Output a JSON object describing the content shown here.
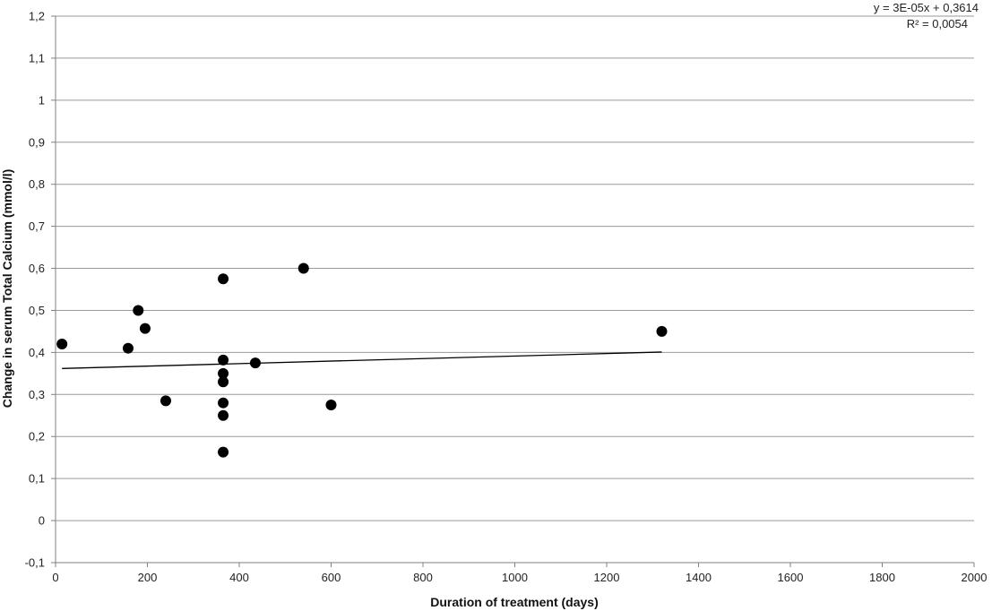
{
  "chart_data": {
    "type": "scatter",
    "title": "",
    "xlabel": "Duration of treatment (days)",
    "ylabel": "Change in serum Total Calcium (mmol/l)",
    "xlim": [
      0,
      2000
    ],
    "ylim": [
      -0.1,
      1.2
    ],
    "x_ticks": [
      0,
      200,
      400,
      600,
      800,
      1000,
      1200,
      1400,
      1600,
      1800,
      2000
    ],
    "x_tick_labels": [
      "0",
      "200",
      "400",
      "600",
      "800",
      "1000",
      "1200",
      "1400",
      "1600",
      "1800",
      "2000"
    ],
    "y_ticks": [
      -0.1,
      0,
      0.1,
      0.2,
      0.3,
      0.4,
      0.5,
      0.6,
      0.7,
      0.8,
      0.9,
      1.0,
      1.1,
      1.2
    ],
    "y_tick_labels": [
      "-0,1",
      "0",
      "0,1",
      "0,2",
      "0,3",
      "0,4",
      "0,5",
      "0,6",
      "0,7",
      "0,8",
      "0,9",
      "1",
      "1,1",
      "1,2"
    ],
    "grid": "horizontal",
    "marker_color": "#000000",
    "grid_color": "#9a9a9a",
    "points": [
      {
        "x": 14,
        "y": 0.42
      },
      {
        "x": 158,
        "y": 0.41
      },
      {
        "x": 180,
        "y": 0.5
      },
      {
        "x": 195,
        "y": 0.457
      },
      {
        "x": 240,
        "y": 0.285
      },
      {
        "x": 365,
        "y": 0.575
      },
      {
        "x": 365,
        "y": 0.382
      },
      {
        "x": 365,
        "y": 0.35
      },
      {
        "x": 365,
        "y": 0.33
      },
      {
        "x": 365,
        "y": 0.28
      },
      {
        "x": 365,
        "y": 0.25
      },
      {
        "x": 365,
        "y": 0.163
      },
      {
        "x": 435,
        "y": 0.375
      },
      {
        "x": 540,
        "y": 0.6
      },
      {
        "x": 600,
        "y": 0.275
      },
      {
        "x": 1320,
        "y": 0.45
      }
    ],
    "trendline": {
      "type": "linear",
      "slope": 3e-05,
      "intercept": 0.3614,
      "x_start": 14,
      "x_end": 1320,
      "equation_text": "y = 3E-05x + 0,3614",
      "r2_text": "R² = 0,0054"
    }
  }
}
